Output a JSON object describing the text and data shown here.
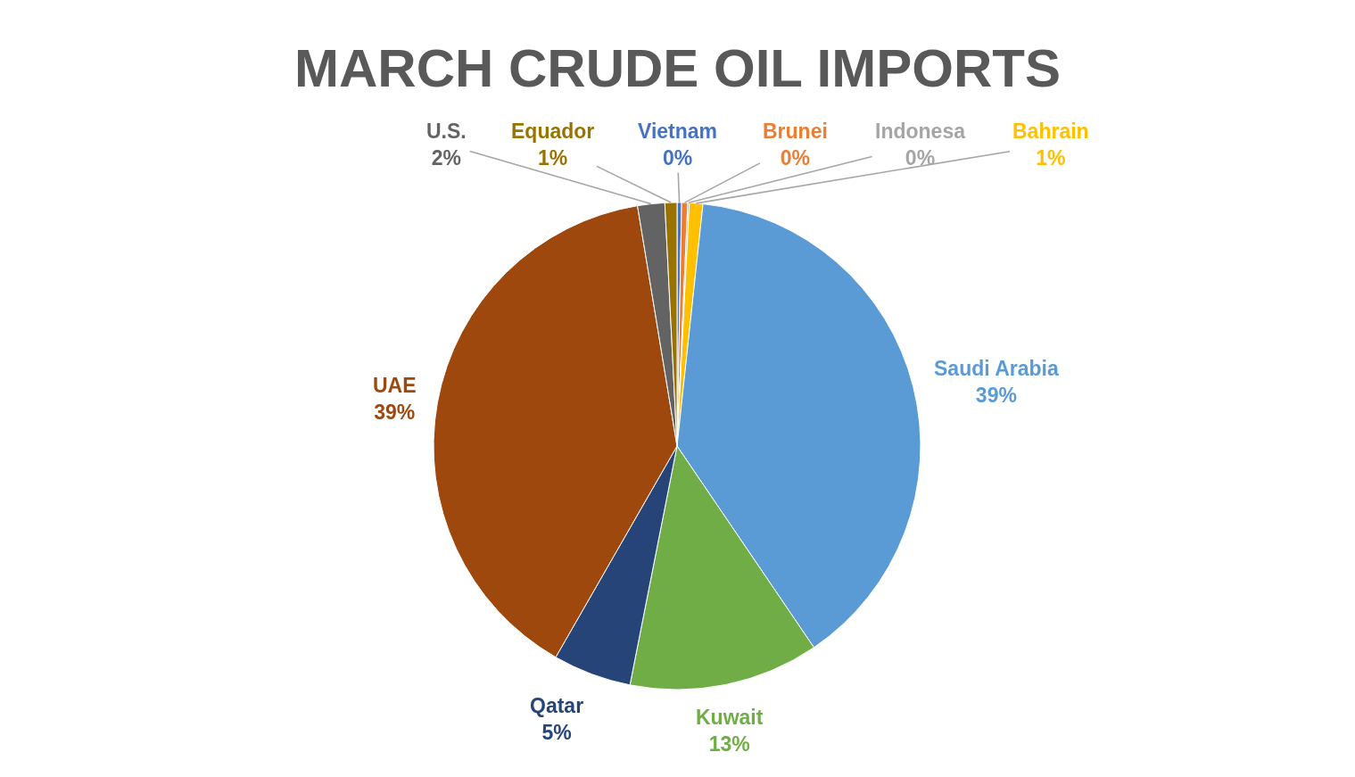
{
  "chart_data": {
    "type": "pie",
    "title": "MARCH CRUDE OIL IMPORTS",
    "categories": [
      "Vietnam",
      "Brunei",
      "Indonesa",
      "Bahrain",
      "Saudi Arabia",
      "Kuwait",
      "Qatar",
      "UAE",
      "U.S.",
      "Equador"
    ],
    "values": [
      0.3,
      0.4,
      0.1,
      0.9,
      38.8,
      12.6,
      5.2,
      39.1,
      1.8,
      0.8
    ],
    "colors": [
      "#4472c4",
      "#ed7d31",
      "#a5a5a5",
      "#ffc000",
      "#5b9bd5",
      "#70ad47",
      "#264478",
      "#9e480e",
      "#636363",
      "#997300"
    ],
    "value_labels": [
      "0%",
      "0%",
      "0%",
      "1%",
      "39%",
      "13%",
      "5%",
      "39%",
      "2%",
      "1%"
    ]
  }
}
